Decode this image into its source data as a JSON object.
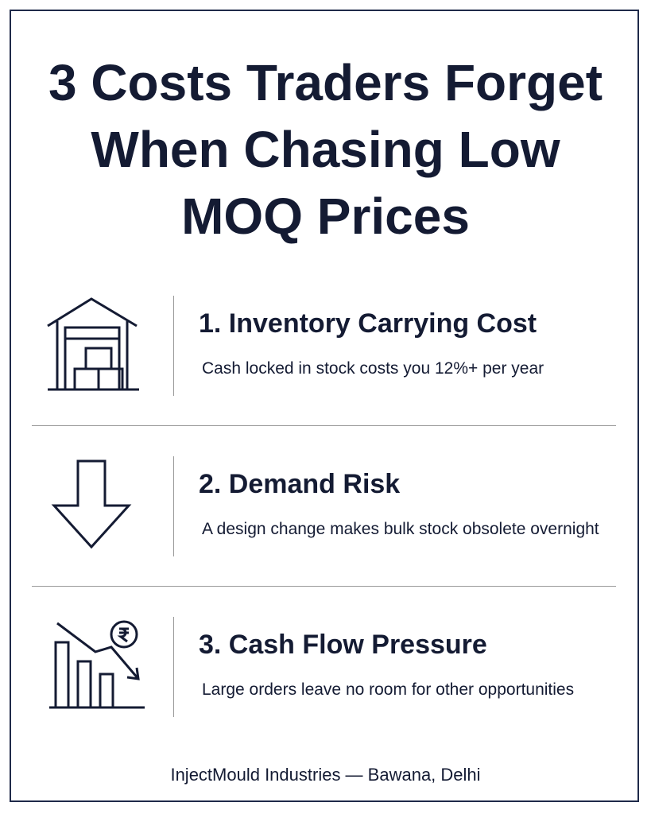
{
  "title": "3 Costs Traders Forget When Chasing Low MOQ Prices",
  "items": [
    {
      "heading": "1. Inventory Carrying Cost",
      "text": "Cash locked in stock costs you 12%+ per year"
    },
    {
      "heading": "2. Demand Risk",
      "text": "A design change makes bulk stock obsolete overnight"
    },
    {
      "heading": "3. Cash Flow Pressure",
      "text": "Large orders leave no room for other opportunities"
    }
  ],
  "footer": "InjectMould Industries — Bawana, Delhi"
}
